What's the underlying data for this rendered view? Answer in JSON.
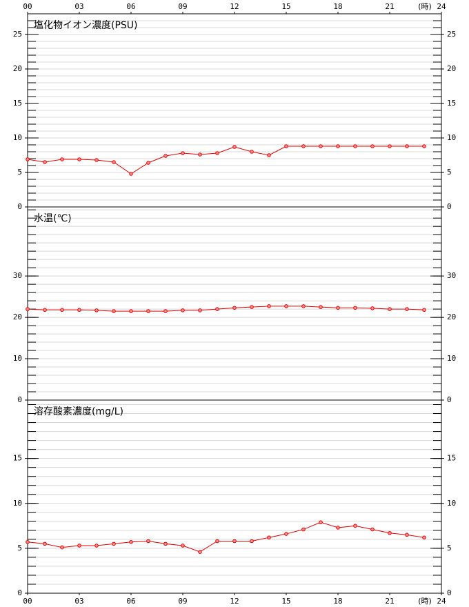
{
  "chart_data": [
    {
      "type": "line",
      "title": "塩化物イオン濃度(PSU)",
      "x_unit": "(時)",
      "x": [
        0,
        1,
        2,
        3,
        4,
        5,
        6,
        7,
        8,
        9,
        10,
        11,
        12,
        13,
        14,
        15,
        16,
        17,
        18,
        19,
        20,
        21,
        22,
        23
      ],
      "values": [
        6.9,
        6.5,
        6.9,
        6.9,
        6.8,
        6.5,
        4.8,
        6.4,
        7.4,
        7.8,
        7.6,
        7.8,
        8.7,
        8.0,
        7.5,
        8.8,
        8.8,
        8.8,
        8.8,
        8.8,
        8.8,
        8.8,
        8.8,
        8.8
      ],
      "color": "#e00000",
      "xlim": [
        0,
        24
      ],
      "xticks": [
        {
          "value": 0,
          "label": "00"
        },
        {
          "value": 3,
          "label": "03"
        },
        {
          "value": 6,
          "label": "06"
        },
        {
          "value": 9,
          "label": "09"
        },
        12,
        15,
        18,
        21,
        24
      ],
      "ylim": [
        0,
        28
      ],
      "yticks": [
        0,
        5,
        10,
        15,
        20,
        25
      ],
      "minor_ystep": 1
    },
    {
      "type": "line",
      "title": "水温(℃)",
      "x": [
        0,
        1,
        2,
        3,
        4,
        5,
        6,
        7,
        8,
        9,
        10,
        11,
        12,
        13,
        14,
        15,
        16,
        17,
        18,
        19,
        20,
        21,
        22,
        23
      ],
      "values": [
        22.0,
        21.8,
        21.8,
        21.8,
        21.7,
        21.5,
        21.5,
        21.5,
        21.5,
        21.7,
        21.7,
        22.0,
        22.3,
        22.5,
        22.7,
        22.7,
        22.7,
        22.5,
        22.3,
        22.3,
        22.2,
        22.0,
        22.0,
        21.8
      ],
      "color": "#e00000",
      "xlim": [
        0,
        24
      ],
      "ylim": [
        0,
        46.7
      ],
      "yticks": [
        0,
        10,
        20,
        30
      ],
      "minor_ystep": 2
    },
    {
      "type": "line",
      "title": "溶存酸素濃度(mg/L)",
      "x_unit": "(時)",
      "x": [
        0,
        1,
        2,
        3,
        4,
        5,
        6,
        7,
        8,
        9,
        10,
        11,
        12,
        13,
        14,
        15,
        16,
        17,
        18,
        19,
        20,
        21,
        22,
        23
      ],
      "values": [
        5.7,
        5.5,
        5.1,
        5.3,
        5.3,
        5.5,
        5.7,
        5.8,
        5.5,
        5.3,
        4.6,
        5.8,
        5.8,
        5.8,
        6.2,
        6.6,
        7.1,
        7.9,
        7.3,
        7.5,
        7.1,
        6.7,
        6.5,
        6.2
      ],
      "color": "#e00000",
      "xlim": [
        0,
        24
      ],
      "xticks": [
        {
          "value": 0,
          "label": "00"
        },
        {
          "value": 3,
          "label": "03"
        },
        {
          "value": 6,
          "label": "06"
        },
        {
          "value": 9,
          "label": "09"
        },
        12,
        15,
        18,
        21,
        24
      ],
      "ylim": [
        0,
        21.5
      ],
      "yticks": [
        0,
        5,
        10,
        15
      ],
      "minor_ystep": 1
    }
  ]
}
